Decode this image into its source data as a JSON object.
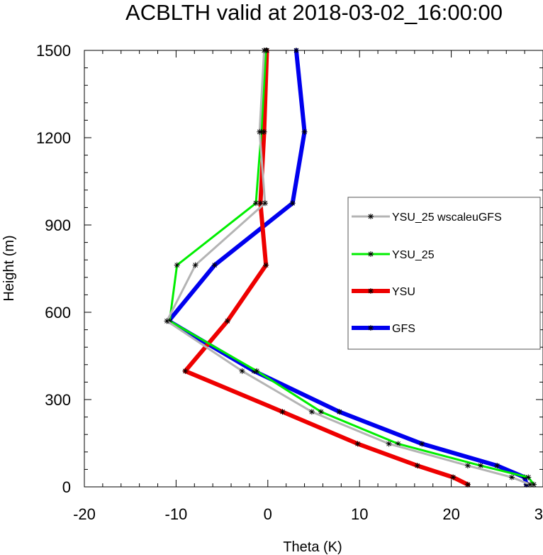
{
  "chart_data": {
    "type": "line",
    "title": "ACBLTH valid at 2018-03-02_16:00:00",
    "xlabel": "Theta (K)",
    "ylabel": "Height (m)",
    "xlim": [
      -20,
      30
    ],
    "ylim": [
      0,
      1500
    ],
    "xticks": [
      -20,
      -10,
      0,
      10,
      20,
      30
    ],
    "yticks": [
      0,
      300,
      600,
      900,
      1200,
      1500
    ],
    "xtick_labels": [
      "-20",
      "-10",
      "0",
      "10",
      "20",
      "30"
    ],
    "ytick_labels": [
      "0",
      "300",
      "600",
      "900",
      "1200",
      "1500"
    ],
    "grid": false,
    "legend_position": "right",
    "legend_order": [
      "YSU_25 wscaleuGFS",
      "YSU_25",
      "YSU",
      "GFS"
    ],
    "series": [
      {
        "name": "GFS",
        "color": "#0000ee",
        "points": [
          [
            28.2,
            8
          ],
          [
            28.0,
            33
          ],
          [
            25.0,
            73
          ],
          [
            16.8,
            148
          ],
          [
            7.8,
            258
          ],
          [
            -1.5,
            398
          ],
          [
            -10.8,
            570
          ],
          [
            -5.8,
            762
          ],
          [
            2.7,
            975
          ],
          [
            4.0,
            1220
          ],
          [
            3.1,
            1500
          ]
        ]
      },
      {
        "name": "YSU",
        "color": "#ee0000",
        "points": [
          [
            21.8,
            8
          ],
          [
            20.2,
            33
          ],
          [
            16.3,
            73
          ],
          [
            9.8,
            148
          ],
          [
            1.6,
            258
          ],
          [
            -9.0,
            398
          ],
          [
            -4.4,
            570
          ],
          [
            -0.2,
            762
          ],
          [
            -0.8,
            975
          ],
          [
            -0.4,
            1220
          ],
          [
            -0.1,
            1500
          ]
        ]
      },
      {
        "name": "YSU_25",
        "color": "#00ee00",
        "points": [
          [
            29.0,
            8
          ],
          [
            28.4,
            33
          ],
          [
            23.2,
            73
          ],
          [
            14.2,
            148
          ],
          [
            5.8,
            258
          ],
          [
            -1.2,
            398
          ],
          [
            -10.7,
            570
          ],
          [
            -9.9,
            762
          ],
          [
            -1.3,
            975
          ],
          [
            -0.7,
            1220
          ],
          [
            -0.2,
            1500
          ]
        ]
      },
      {
        "name": "YSU_25 wscaleuGFS",
        "color": "#b4b4b4",
        "points": [
          [
            28.6,
            8
          ],
          [
            26.6,
            33
          ],
          [
            21.8,
            73
          ],
          [
            13.2,
            148
          ],
          [
            4.8,
            258
          ],
          [
            -2.8,
            398
          ],
          [
            -11.0,
            570
          ],
          [
            -7.9,
            762
          ],
          [
            -0.3,
            975
          ],
          [
            -0.9,
            1220
          ],
          [
            -0.4,
            1500
          ]
        ]
      }
    ]
  }
}
